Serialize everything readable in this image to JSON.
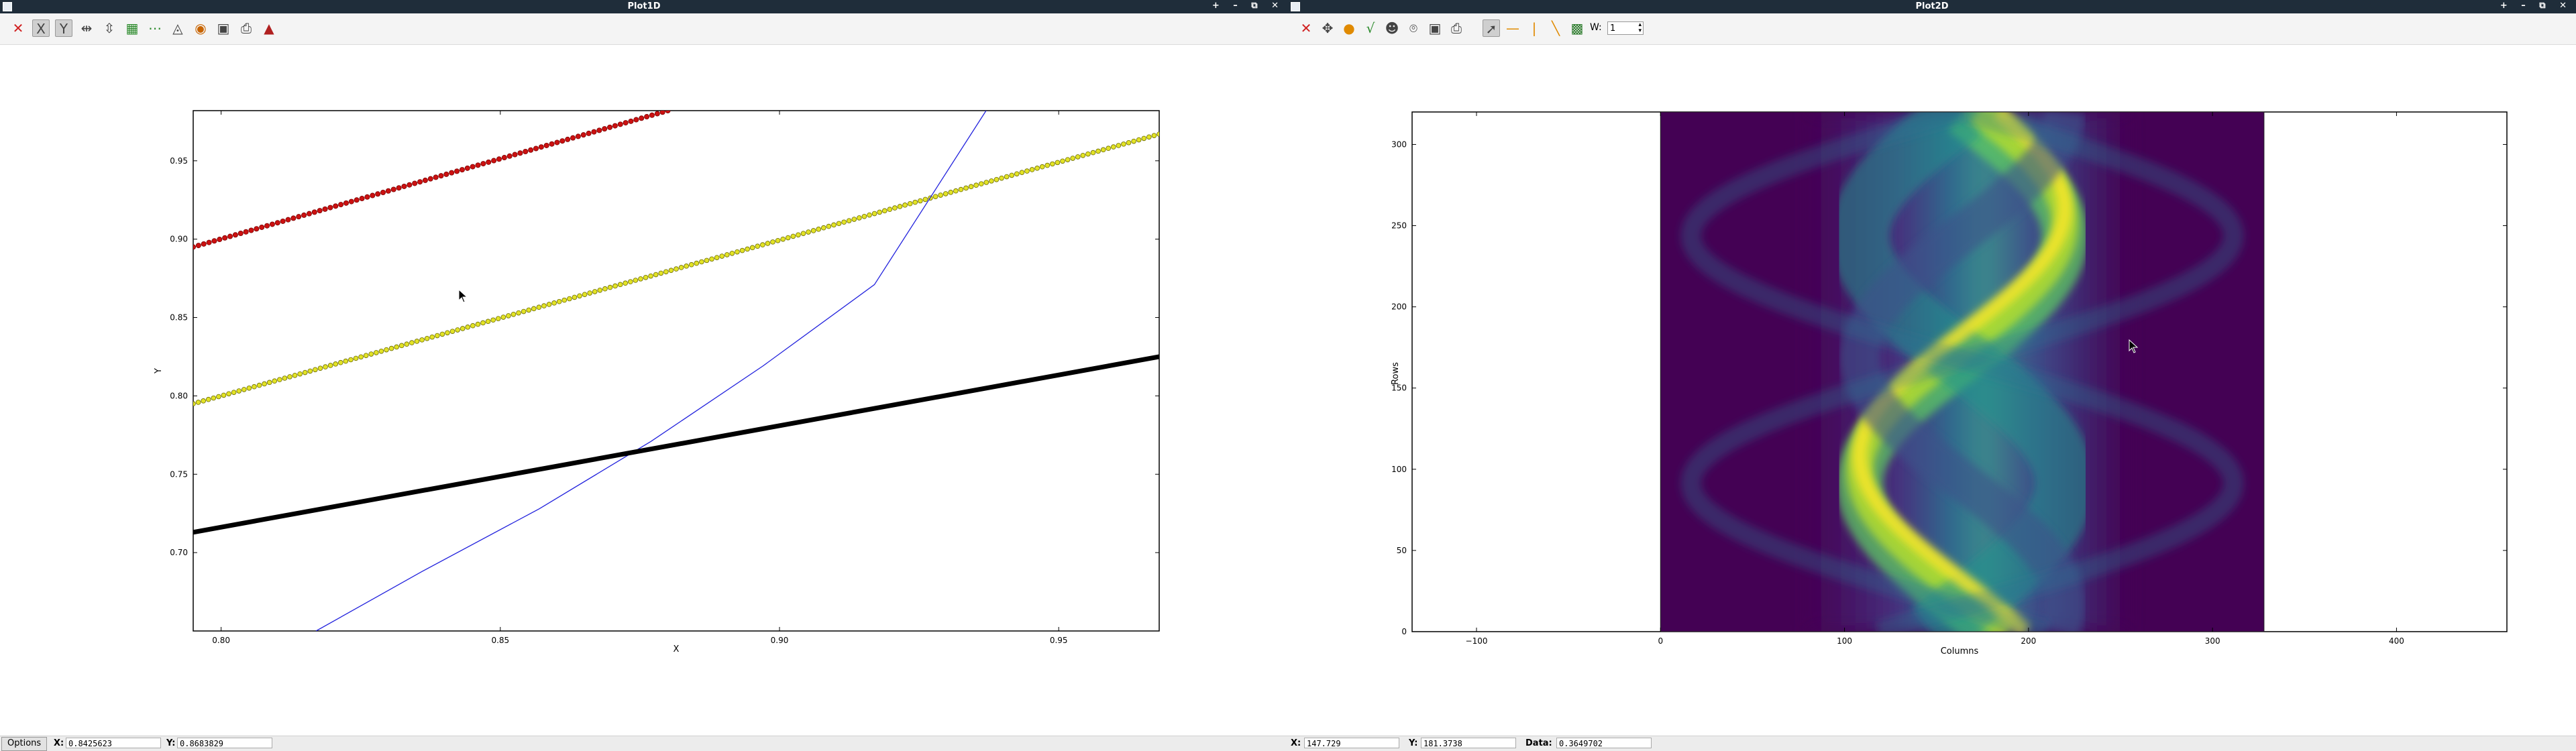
{
  "plot1d": {
    "title": "Plot1D",
    "window_controls": "+ – ⧉ ✕",
    "toolbar_icons": [
      "close-x-icon",
      "zoom-x-icon",
      "zoom-y-icon",
      "autoscale-x-icon",
      "autoscale-y-icon",
      "grid-icon",
      "curve-style-icon",
      "xy-axis-icon",
      "colormap-icon",
      "save-icon",
      "print-icon",
      "profile-icon"
    ],
    "status": {
      "options_label": "Options",
      "x_label": "X:",
      "x_value": "0.8425623",
      "y_label": "Y:",
      "y_value": "0.8683829"
    },
    "chart_data": {
      "type": "line",
      "title": "",
      "xlabel": "X",
      "ylabel": "Y",
      "xlim": [
        0.795,
        0.968
      ],
      "ylim": [
        0.65,
        0.982
      ],
      "xticks": [
        "0.80",
        "0.85",
        "0.90",
        "0.95"
      ],
      "yticks": [
        "0.70",
        "0.75",
        "0.80",
        "0.85",
        "0.90",
        "0.95"
      ],
      "series": [
        {
          "color": "#cc1111",
          "style": "markers-circle",
          "x": [
            0.795,
            0.88
          ],
          "y": [
            0.895,
            0.982
          ]
        },
        {
          "color": "#e3e326",
          "style": "markers-ring",
          "x": [
            0.795,
            0.968
          ],
          "y": [
            0.795,
            0.967
          ]
        },
        {
          "color": "#2222dd",
          "style": "thin-line-curve",
          "x": [
            0.817,
            0.836,
            0.857,
            0.877,
            0.897,
            0.917,
            0.937
          ],
          "y": [
            0.65,
            0.688,
            0.728,
            0.771,
            0.819,
            0.871,
            0.982
          ]
        },
        {
          "color": "#000000",
          "style": "thick-line",
          "x": [
            0.795,
            0.968
          ],
          "y": [
            0.713,
            0.825
          ]
        }
      ]
    }
  },
  "plot2d": {
    "title": "Plot2D",
    "window_controls": "+ – ⧉ ✕",
    "toolbar_icons": [
      "close-x-icon",
      "zoom-icon",
      "colormap-icon",
      "sort-icon",
      "mask-icon",
      "profile-icon",
      "save-icon",
      "print-icon",
      "pointer-icon",
      "hline-icon",
      "vline-icon",
      "line-icon",
      "roi-icon"
    ],
    "width_label": "W:",
    "width_value": "1",
    "status": {
      "x_label": "X:",
      "x_value": "147.729",
      "y_label": "Y:",
      "y_value": "181.3738",
      "data_label": "Data:",
      "data_value": "0.3649702"
    },
    "chart_data": {
      "type": "heatmap",
      "title": "",
      "xlabel": "Columns",
      "ylabel": "Rows",
      "xlim": [
        -135,
        460
      ],
      "ylim": [
        0,
        320
      ],
      "image_extent": {
        "x": [
          0,
          328
        ],
        "y": [
          0,
          320
        ]
      },
      "xticks": [
        "−100",
        "0",
        "100",
        "200",
        "300",
        "400"
      ],
      "yticks": [
        "0",
        "50",
        "100",
        "150",
        "200",
        "250",
        "300"
      ],
      "colormap": [
        "#440154",
        "#3b528b",
        "#21918c",
        "#5ec962",
        "#fde725"
      ]
    }
  }
}
